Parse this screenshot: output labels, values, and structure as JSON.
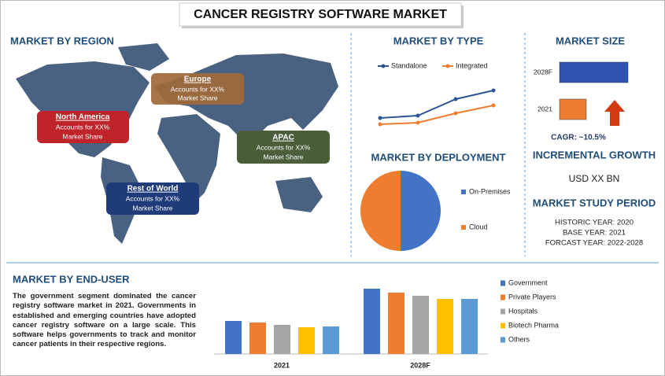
{
  "title": "CANCER REGISTRY SOFTWARE MARKET",
  "region": {
    "heading": "MARKET BY REGION",
    "boxes": [
      {
        "name": "Europe",
        "text": "Accounts for XX%",
        "text2": "Market Share"
      },
      {
        "name": "North America",
        "text": "Accounts for XX%",
        "text2": "Market Share"
      },
      {
        "name": "APAC",
        "text": "Accounts for XX%",
        "text2": "Market Share"
      },
      {
        "name": "Rest of World",
        "text": "Accounts for XX%",
        "text2": "Market Share"
      }
    ]
  },
  "chart_data": [
    {
      "type": "line",
      "title": "MARKET BY TYPE",
      "series": [
        {
          "name": "Standalone",
          "color": "#2f5597",
          "values": [
            20,
            23,
            44,
            55
          ]
        },
        {
          "name": "Integrated",
          "color": "#ed7d31",
          "values": [
            12,
            14,
            26,
            36
          ]
        }
      ]
    },
    {
      "type": "pie",
      "title": "MARKET BY DEPLOYMENT",
      "categories": [
        "On-Premises",
        "Cloud"
      ],
      "values": [
        50,
        50
      ],
      "colors": [
        "#4472c4",
        "#ed7d31"
      ]
    },
    {
      "type": "bar",
      "orientation": "horizontal",
      "title": "MARKET SIZE",
      "categories": [
        "2028F",
        "2021"
      ],
      "values": [
        100,
        39
      ],
      "colors": [
        "#2f55b0",
        "#ed7d31"
      ]
    },
    {
      "type": "bar",
      "orientation": "vertical",
      "title": "MARKET BY END-USER",
      "categories": [
        "2021",
        "2028F"
      ],
      "series": [
        {
          "name": "Government",
          "color": "#4472c4",
          "values": [
            42,
            83
          ]
        },
        {
          "name": "Private Players",
          "color": "#ed7d31",
          "values": [
            40,
            78
          ]
        },
        {
          "name": "Hospitals",
          "color": "#a5a5a5",
          "values": [
            37,
            74
          ]
        },
        {
          "name": "Biotech Pharma",
          "color": "#ffc000",
          "values": [
            34,
            70
          ]
        },
        {
          "name": "Others",
          "color": "#5b9bd5",
          "values": [
            35,
            70
          ]
        }
      ]
    }
  ],
  "market_size": {
    "cagr": "CAGR:  ~10.5%"
  },
  "incremental": {
    "heading": "INCREMENTAL GROWTH",
    "value": "USD XX BN"
  },
  "study": {
    "heading": "MARKET STUDY PERIOD",
    "lines": [
      "HISTORIC YEAR: 2020",
      "BASE YEAR: 2021",
      "FORCAST YEAR: 2022-2028"
    ]
  },
  "end_user": {
    "text": "The government segment dominated the cancer registry software market in 2021. Governments in established and emerging countries have adopted cancer registry software on a large scale. This software helps governments to track and monitor cancer patients in their respective regions."
  }
}
